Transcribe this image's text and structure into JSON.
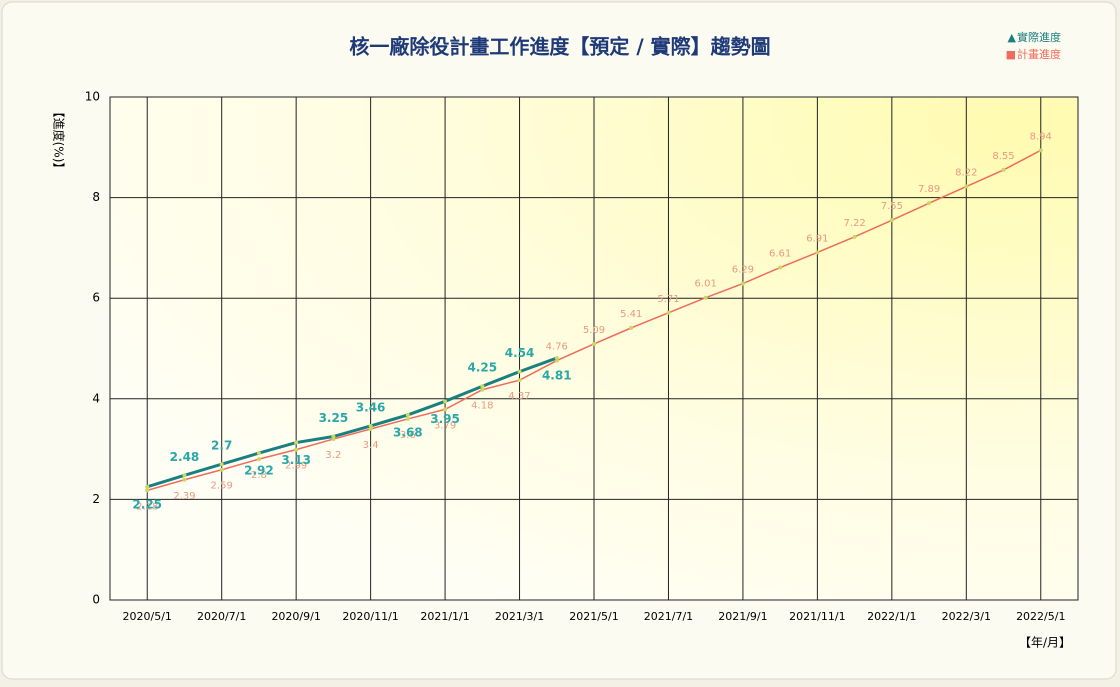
{
  "chart_data": {
    "type": "line",
    "title": "核一廠除役計畫工作進度【預定 / 實際】趨勢圖",
    "y_label": "【進度(%)】",
    "x_label": "【年/月】",
    "categories": [
      "2020/5/1",
      null,
      "2020/7/1",
      null,
      "2020/9/1",
      null,
      "2020/11/1",
      null,
      "2021/1/1",
      null,
      "2021/3/1",
      null,
      "2021/5/1",
      null,
      "2021/7/1",
      null,
      "2021/9/1",
      null,
      "2021/11/1",
      null,
      "2022/1/1",
      null,
      "2022/3/1",
      null,
      "2022/5/1"
    ],
    "series": [
      {
        "name": "實際進度",
        "marker": "▲",
        "color": "#1a7f80",
        "label_color": "#2aa7a8",
        "values": [
          2.25,
          2.48,
          2.7,
          2.92,
          3.13,
          3.25,
          3.46,
          3.68,
          3.95,
          4.25,
          4.54,
          4.81,
          null,
          null,
          null,
          null,
          null,
          null,
          null,
          null,
          null,
          null,
          null,
          null,
          null
        ]
      },
      {
        "name": "計畫進度",
        "marker": "■",
        "color": "#f06b5a",
        "label_color": "#e89a80",
        "values": [
          2.18,
          2.39,
          2.59,
          2.8,
          2.99,
          3.2,
          3.4,
          3.6,
          3.79,
          4.18,
          4.37,
          4.76,
          5.09,
          5.41,
          5.71,
          6.01,
          6.29,
          6.61,
          6.91,
          7.22,
          7.55,
          7.89,
          8.22,
          8.55,
          8.94
        ]
      }
    ],
    "ylim": [
      0,
      10
    ],
    "yticks": [
      0,
      2,
      4,
      6,
      8,
      10
    ],
    "grid": true
  }
}
